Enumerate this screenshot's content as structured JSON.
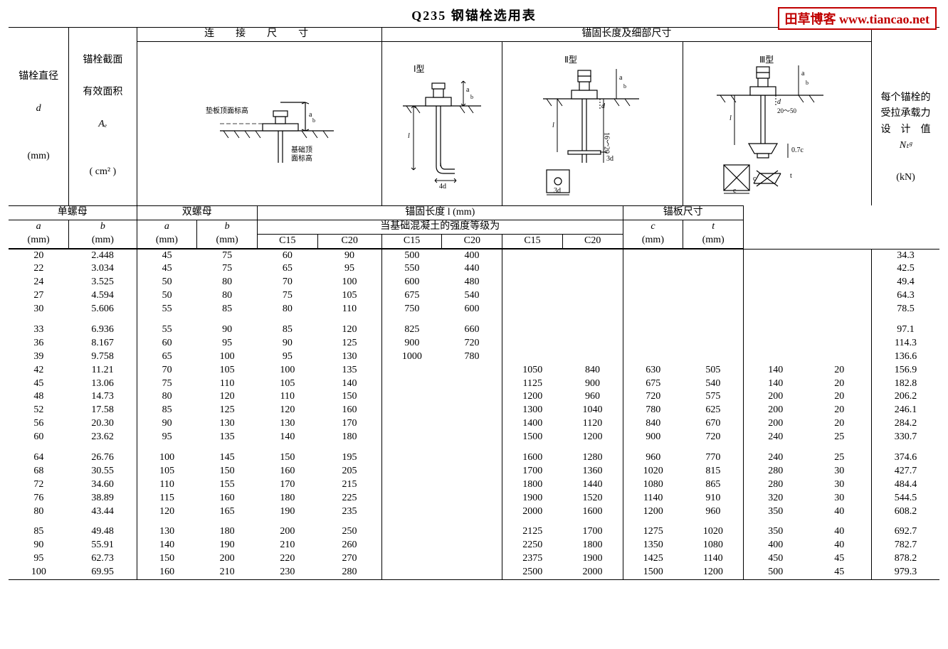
{
  "title": "Q235 钢锚栓选用表",
  "watermark": "田草博客 www.tiancao.net",
  "header": {
    "col_d": "锚栓直径",
    "col_d_sym": "d",
    "col_d_unit": "(mm)",
    "col_Ae_l1": "锚栓截面",
    "col_Ae_l2": "有效面积",
    "col_Ae_sym": "Aₑ",
    "col_Ae_unit": "( cm² )",
    "group_conn": "连　接　尺　寸",
    "group_anchor": "锚固长度及细部尺寸",
    "col_Nt_l1": "每个锚栓的",
    "col_Nt_l2": "受拉承载力",
    "col_Nt_l3": "设　计　值",
    "col_Nt_sym": "Nₜᵍ",
    "col_Nt_unit": "(kN)",
    "sub_single": "单螺母",
    "sub_double": "双螺母",
    "anchor_len": "锚固长度  l (mm)",
    "anchor_plate": "锚板尺寸",
    "concrete_grade": "当基础混凝土的强度等级为",
    "a": "a",
    "b": "b",
    "c": "c",
    "t": "t",
    "mm": "(mm)",
    "C15": "C15",
    "C20": "C20",
    "type1": "Ⅰ型",
    "type2": "Ⅱ型",
    "type3": "Ⅲ型",
    "d1_top": "垫板顶面标高",
    "d1_bot": "基础顶\n面标高"
  },
  "diagram_colors": {
    "stroke": "#000000",
    "fill_none": "none",
    "bg": "#ffffff"
  },
  "rows": [
    {
      "d": "20",
      "Ae": "2.448",
      "sa": "45",
      "sb": "75",
      "da": "60",
      "db": "90",
      "l1_c15": "500",
      "l1_c20": "400",
      "l2_c15": "",
      "l2_c20": "",
      "l3_c15": "",
      "l3_c20": "",
      "c": "",
      "t": "",
      "Nt": "34.3"
    },
    {
      "d": "22",
      "Ae": "3.034",
      "sa": "45",
      "sb": "75",
      "da": "65",
      "db": "95",
      "l1_c15": "550",
      "l1_c20": "440",
      "l2_c15": "",
      "l2_c20": "",
      "l3_c15": "",
      "l3_c20": "",
      "c": "",
      "t": "",
      "Nt": "42.5"
    },
    {
      "d": "24",
      "Ae": "3.525",
      "sa": "50",
      "sb": "80",
      "da": "70",
      "db": "100",
      "l1_c15": "600",
      "l1_c20": "480",
      "l2_c15": "",
      "l2_c20": "",
      "l3_c15": "",
      "l3_c20": "",
      "c": "",
      "t": "",
      "Nt": "49.4"
    },
    {
      "d": "27",
      "Ae": "4.594",
      "sa": "50",
      "sb": "80",
      "da": "75",
      "db": "105",
      "l1_c15": "675",
      "l1_c20": "540",
      "l2_c15": "",
      "l2_c20": "",
      "l3_c15": "",
      "l3_c20": "",
      "c": "",
      "t": "",
      "Nt": "64.3"
    },
    {
      "d": "30",
      "Ae": "5.606",
      "sa": "55",
      "sb": "85",
      "da": "80",
      "db": "110",
      "l1_c15": "750",
      "l1_c20": "600",
      "l2_c15": "",
      "l2_c20": "",
      "l3_c15": "",
      "l3_c20": "",
      "c": "",
      "t": "",
      "Nt": "78.5"
    },
    {
      "gap": true
    },
    {
      "d": "33",
      "Ae": "6.936",
      "sa": "55",
      "sb": "90",
      "da": "85",
      "db": "120",
      "l1_c15": "825",
      "l1_c20": "660",
      "l2_c15": "",
      "l2_c20": "",
      "l3_c15": "",
      "l3_c20": "",
      "c": "",
      "t": "",
      "Nt": "97.1"
    },
    {
      "d": "36",
      "Ae": "8.167",
      "sa": "60",
      "sb": "95",
      "da": "90",
      "db": "125",
      "l1_c15": "900",
      "l1_c20": "720",
      "l2_c15": "",
      "l2_c20": "",
      "l3_c15": "",
      "l3_c20": "",
      "c": "",
      "t": "",
      "Nt": "114.3"
    },
    {
      "d": "39",
      "Ae": "9.758",
      "sa": "65",
      "sb": "100",
      "da": "95",
      "db": "130",
      "l1_c15": "1000",
      "l1_c20": "780",
      "l2_c15": "",
      "l2_c20": "",
      "l3_c15": "",
      "l3_c20": "",
      "c": "",
      "t": "",
      "Nt": "136.6"
    },
    {
      "d": "42",
      "Ae": "11.21",
      "sa": "70",
      "sb": "105",
      "da": "100",
      "db": "135",
      "l1_c15": "",
      "l1_c20": "",
      "l2_c15": "1050",
      "l2_c20": "840",
      "l3_c15": "630",
      "l3_c20": "505",
      "c": "140",
      "t": "20",
      "Nt": "156.9"
    },
    {
      "d": "45",
      "Ae": "13.06",
      "sa": "75",
      "sb": "110",
      "da": "105",
      "db": "140",
      "l1_c15": "",
      "l1_c20": "",
      "l2_c15": "1125",
      "l2_c20": "900",
      "l3_c15": "675",
      "l3_c20": "540",
      "c": "140",
      "t": "20",
      "Nt": "182.8"
    },
    {
      "d": "48",
      "Ae": "14.73",
      "sa": "80",
      "sb": "120",
      "da": "110",
      "db": "150",
      "l1_c15": "",
      "l1_c20": "",
      "l2_c15": "1200",
      "l2_c20": "960",
      "l3_c15": "720",
      "l3_c20": "575",
      "c": "200",
      "t": "20",
      "Nt": "206.2"
    },
    {
      "d": "52",
      "Ae": "17.58",
      "sa": "85",
      "sb": "125",
      "da": "120",
      "db": "160",
      "l1_c15": "",
      "l1_c20": "",
      "l2_c15": "1300",
      "l2_c20": "1040",
      "l3_c15": "780",
      "l3_c20": "625",
      "c": "200",
      "t": "20",
      "Nt": "246.1"
    },
    {
      "d": "56",
      "Ae": "20.30",
      "sa": "90",
      "sb": "130",
      "da": "130",
      "db": "170",
      "l1_c15": "",
      "l1_c20": "",
      "l2_c15": "1400",
      "l2_c20": "1120",
      "l3_c15": "840",
      "l3_c20": "670",
      "c": "200",
      "t": "20",
      "Nt": "284.2"
    },
    {
      "d": "60",
      "Ae": "23.62",
      "sa": "95",
      "sb": "135",
      "da": "140",
      "db": "180",
      "l1_c15": "",
      "l1_c20": "",
      "l2_c15": "1500",
      "l2_c20": "1200",
      "l3_c15": "900",
      "l3_c20": "720",
      "c": "240",
      "t": "25",
      "Nt": "330.7"
    },
    {
      "gap": true
    },
    {
      "d": "64",
      "Ae": "26.76",
      "sa": "100",
      "sb": "145",
      "da": "150",
      "db": "195",
      "l1_c15": "",
      "l1_c20": "",
      "l2_c15": "1600",
      "l2_c20": "1280",
      "l3_c15": "960",
      "l3_c20": "770",
      "c": "240",
      "t": "25",
      "Nt": "374.6"
    },
    {
      "d": "68",
      "Ae": "30.55",
      "sa": "105",
      "sb": "150",
      "da": "160",
      "db": "205",
      "l1_c15": "",
      "l1_c20": "",
      "l2_c15": "1700",
      "l2_c20": "1360",
      "l3_c15": "1020",
      "l3_c20": "815",
      "c": "280",
      "t": "30",
      "Nt": "427.7"
    },
    {
      "d": "72",
      "Ae": "34.60",
      "sa": "110",
      "sb": "155",
      "da": "170",
      "db": "215",
      "l1_c15": "",
      "l1_c20": "",
      "l2_c15": "1800",
      "l2_c20": "1440",
      "l3_c15": "1080",
      "l3_c20": "865",
      "c": "280",
      "t": "30",
      "Nt": "484.4"
    },
    {
      "d": "76",
      "Ae": "38.89",
      "sa": "115",
      "sb": "160",
      "da": "180",
      "db": "225",
      "l1_c15": "",
      "l1_c20": "",
      "l2_c15": "1900",
      "l2_c20": "1520",
      "l3_c15": "1140",
      "l3_c20": "910",
      "c": "320",
      "t": "30",
      "Nt": "544.5"
    },
    {
      "d": "80",
      "Ae": "43.44",
      "sa": "120",
      "sb": "165",
      "da": "190",
      "db": "235",
      "l1_c15": "",
      "l1_c20": "",
      "l2_c15": "2000",
      "l2_c20": "1600",
      "l3_c15": "1200",
      "l3_c20": "960",
      "c": "350",
      "t": "40",
      "Nt": "608.2"
    },
    {
      "gap": true
    },
    {
      "d": "85",
      "Ae": "49.48",
      "sa": "130",
      "sb": "180",
      "da": "200",
      "db": "250",
      "l1_c15": "",
      "l1_c20": "",
      "l2_c15": "2125",
      "l2_c20": "1700",
      "l3_c15": "1275",
      "l3_c20": "1020",
      "c": "350",
      "t": "40",
      "Nt": "692.7"
    },
    {
      "d": "90",
      "Ae": "55.91",
      "sa": "140",
      "sb": "190",
      "da": "210",
      "db": "260",
      "l1_c15": "",
      "l1_c20": "",
      "l2_c15": "2250",
      "l2_c20": "1800",
      "l3_c15": "1350",
      "l3_c20": "1080",
      "c": "400",
      "t": "40",
      "Nt": "782.7"
    },
    {
      "d": "95",
      "Ae": "62.73",
      "sa": "150",
      "sb": "200",
      "da": "220",
      "db": "270",
      "l1_c15": "",
      "l1_c20": "",
      "l2_c15": "2375",
      "l2_c20": "1900",
      "l3_c15": "1425",
      "l3_c20": "1140",
      "c": "450",
      "t": "45",
      "Nt": "878.2"
    },
    {
      "d": "100",
      "Ae": "69.95",
      "sa": "160",
      "sb": "210",
      "da": "230",
      "db": "280",
      "l1_c15": "",
      "l1_c20": "",
      "l2_c15": "2500",
      "l2_c20": "2000",
      "l3_c15": "1500",
      "l3_c20": "1200",
      "c": "500",
      "t": "45",
      "Nt": "979.3"
    }
  ]
}
